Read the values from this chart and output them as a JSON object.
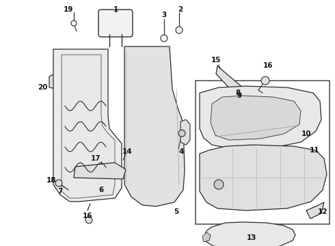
{
  "bg_color": "#ffffff",
  "line_color": "#2a2a2a",
  "text_color": "#111111",
  "figsize": [
    4.9,
    3.6
  ],
  "dpi": 100
}
